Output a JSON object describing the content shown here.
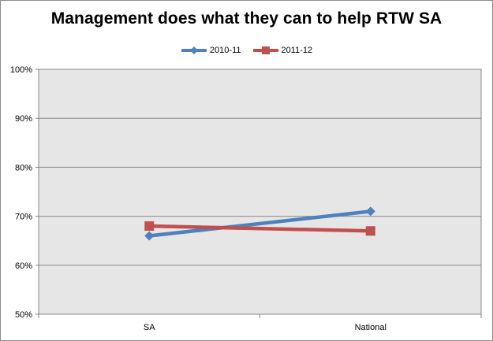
{
  "chart_data": {
    "type": "line",
    "title": "Management does what they can to help RTW SA",
    "xlabel": "",
    "ylabel": "",
    "categories": [
      "SA",
      "National"
    ],
    "ylim": [
      50,
      100
    ],
    "yticks": [
      50,
      60,
      70,
      80,
      90,
      100
    ],
    "ytick_labels": [
      "50%",
      "60%",
      "70%",
      "80%",
      "90%",
      "100%"
    ],
    "grid": true,
    "legend_position": "top",
    "series": [
      {
        "name": "2010-11",
        "values": [
          66,
          71
        ],
        "color": "#4f81bd",
        "marker": "diamond"
      },
      {
        "name": "2011-12",
        "values": [
          68,
          67
        ],
        "color": "#c0504d",
        "marker": "square"
      }
    ],
    "plot_background": "#e6e6e6"
  }
}
